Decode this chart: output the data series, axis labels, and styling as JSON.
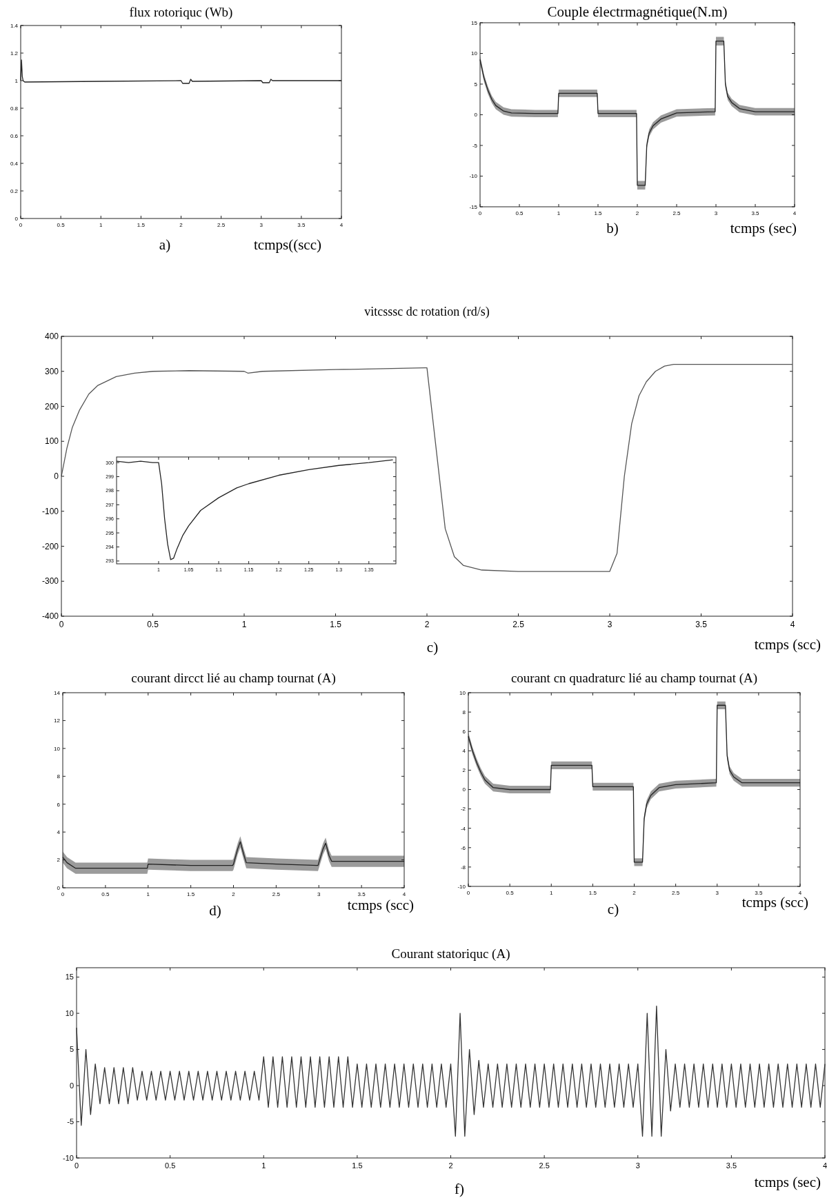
{
  "chart_data": [
    {
      "type": "line",
      "title": "flux rotoriquc (Wb)",
      "xlabel": "tcmps((scc)",
      "annotations": [
        "a)"
      ],
      "xlim": [
        0,
        4
      ],
      "ylim": [
        0,
        1.4
      ],
      "xticks": [
        0,
        0.5,
        1,
        1.5,
        2,
        2.5,
        3,
        3.5,
        4
      ],
      "yticks": [
        0,
        0.2,
        0.4,
        0.6,
        0.8,
        1,
        1.2,
        1.4
      ],
      "series": [
        {
          "color": "#222222",
          "x": [
            0,
            0.01,
            0.02,
            0.03,
            0.05,
            1.0,
            2.0,
            2.02,
            2.08,
            2.1,
            2.12,
            2.14,
            3.0,
            3.02,
            3.08,
            3.1,
            3.12,
            3.14,
            4.0
          ],
          "values": [
            1.0,
            1.15,
            1.03,
            1.0,
            0.99,
            0.995,
            1.0,
            0.98,
            0.98,
            0.98,
            1.01,
            0.995,
            1.0,
            0.985,
            0.985,
            0.985,
            1.01,
            1.0,
            1.0
          ]
        }
      ]
    },
    {
      "type": "line",
      "title": "Couple électrmagnétique(N.m)",
      "xlabel": "tcmps (sec)",
      "annotations": [
        "b)"
      ],
      "xlim": [
        0,
        4
      ],
      "ylim": [
        -15,
        15
      ],
      "xticks": [
        0,
        0.5,
        1,
        1.5,
        2,
        2.5,
        3,
        3.5,
        4
      ],
      "yticks": [
        -15,
        -10,
        -5,
        0,
        5,
        10,
        15
      ],
      "series": [
        {
          "color": "#222222",
          "x": [
            0,
            0.05,
            0.1,
            0.15,
            0.2,
            0.3,
            0.4,
            0.7,
            0.99,
            1.0,
            1.25,
            1.49,
            1.5,
            1.75,
            1.99,
            2.0,
            2.1,
            2.12,
            2.15,
            2.2,
            2.3,
            2.5,
            2.99,
            3.0,
            3.1,
            3.12,
            3.15,
            3.2,
            3.3,
            3.5,
            4.0
          ],
          "values": [
            9,
            6,
            4,
            2.5,
            1.5,
            0.6,
            0.3,
            0.2,
            0.2,
            3.5,
            3.5,
            3.5,
            0.2,
            0.2,
            0.2,
            -11.5,
            -11.5,
            -5,
            -3,
            -1.8,
            -0.7,
            0.3,
            0.5,
            12,
            12,
            5,
            3,
            2,
            1,
            0.5,
            0.5
          ],
          "lower": [
            8.4,
            5.4,
            3.4,
            1.9,
            0.9,
            0,
            -0.3,
            -0.4,
            -0.4,
            2.9,
            2.9,
            2.9,
            -0.4,
            -0.4,
            -0.4,
            -12.2,
            -12.2,
            -5.6,
            -3.6,
            -2.4,
            -1.3,
            -0.3,
            -0.1,
            11.3,
            11.3,
            4.4,
            2.4,
            1.4,
            0.4,
            -0.1,
            -0.1
          ],
          "upper": [
            9.6,
            6.6,
            4.6,
            3.1,
            2.1,
            1.2,
            0.9,
            0.8,
            0.8,
            4.1,
            4.1,
            4.1,
            0.8,
            0.8,
            0.8,
            -10.8,
            -10.8,
            -4.4,
            -2.4,
            -1.2,
            -0.1,
            0.9,
            1.1,
            12.7,
            12.7,
            5.6,
            3.6,
            2.6,
            1.6,
            1.1,
            1.1
          ]
        }
      ]
    },
    {
      "type": "line",
      "title": "vitcsssc dc rotation (rd/s)",
      "xlabel": "tcmps (scc)",
      "annotations": [
        "c)"
      ],
      "xlim": [
        0,
        4
      ],
      "ylim": [
        -400,
        400
      ],
      "xticks": [
        0,
        0.5,
        1,
        1.5,
        2,
        2.5,
        3,
        3.5,
        4
      ],
      "yticks": [
        -400,
        -300,
        -200,
        -100,
        0,
        100,
        200,
        300,
        400
      ],
      "series": [
        {
          "color": "#555555",
          "x": [
            0,
            0.03,
            0.06,
            0.1,
            0.15,
            0.2,
            0.3,
            0.4,
            0.5,
            0.7,
            1.0,
            1.02,
            1.1,
            1.5,
            1.99,
            2.0,
            2.05,
            2.1,
            2.15,
            2.2,
            2.3,
            2.5,
            2.99,
            3.0,
            3.04,
            3.08,
            3.12,
            3.16,
            3.2,
            3.25,
            3.3,
            3.35,
            3.5,
            4.0
          ],
          "values": [
            0,
            80,
            140,
            190,
            235,
            260,
            285,
            295,
            300,
            302,
            300,
            295,
            300,
            305,
            310,
            310,
            80,
            -150,
            -230,
            -255,
            -268,
            -272,
            -272,
            -272,
            -220,
            0,
            150,
            230,
            270,
            300,
            315,
            320,
            320,
            320
          ]
        }
      ]
    },
    {
      "type": "line",
      "xlim": [
        0.93,
        1.395
      ],
      "ylim": [
        292.8,
        300.4
      ],
      "xticks": [
        1,
        1.05,
        1.1,
        1.15,
        1.2,
        1.25,
        1.3,
        1.35
      ],
      "yticks": [
        293,
        294,
        295,
        296,
        297,
        298,
        299,
        300
      ],
      "series": [
        {
          "color": "#222222",
          "x": [
            0.93,
            0.95,
            0.97,
            0.99,
            1.0,
            1.005,
            1.01,
            1.015,
            1.02,
            1.025,
            1.03,
            1.04,
            1.05,
            1.07,
            1.1,
            1.13,
            1.15,
            1.2,
            1.25,
            1.3,
            1.35,
            1.39
          ],
          "values": [
            300.1,
            300,
            300.1,
            300,
            300,
            298.5,
            296,
            294.2,
            293.1,
            293.2,
            293.8,
            294.8,
            295.5,
            296.6,
            297.5,
            298.2,
            298.5,
            299.1,
            299.5,
            299.8,
            300,
            300.2
          ]
        }
      ]
    },
    {
      "type": "line",
      "title": "courant dircct lié au champ tournat (A)",
      "xlabel": "tcmps (scc)",
      "annotations": [
        "d)"
      ],
      "xlim": [
        0,
        4
      ],
      "ylim": [
        0,
        14
      ],
      "xticks": [
        0,
        0.5,
        1,
        1.5,
        2,
        2.5,
        3,
        3.5,
        4
      ],
      "yticks": [
        0,
        2,
        4,
        6,
        8,
        10,
        12,
        14
      ],
      "series": [
        {
          "color": "#222222",
          "x": [
            0,
            0.05,
            0.15,
            0.5,
            0.99,
            1.0,
            1.5,
            1.99,
            2.0,
            2.05,
            2.08,
            2.12,
            2.15,
            2.5,
            2.99,
            3.0,
            3.05,
            3.08,
            3.12,
            3.15,
            3.5,
            4.0
          ],
          "values": [
            2.2,
            1.8,
            1.4,
            1.4,
            1.4,
            1.7,
            1.6,
            1.6,
            1.7,
            2.8,
            3.3,
            2.4,
            1.8,
            1.7,
            1.6,
            1.8,
            2.8,
            3.2,
            2.3,
            1.9,
            1.9,
            1.9
          ],
          "lower": [
            1.8,
            1.4,
            1.0,
            1.0,
            1.0,
            1.3,
            1.2,
            1.2,
            1.3,
            2.4,
            2.9,
            2.0,
            1.4,
            1.3,
            1.2,
            1.4,
            2.4,
            2.8,
            1.9,
            1.5,
            1.5,
            1.5
          ],
          "upper": [
            2.6,
            2.2,
            1.8,
            1.8,
            1.8,
            2.1,
            2.0,
            2.0,
            2.1,
            3.2,
            3.7,
            2.8,
            2.2,
            2.1,
            2.0,
            2.2,
            3.2,
            3.6,
            2.7,
            2.3,
            2.3,
            2.3
          ]
        }
      ]
    },
    {
      "type": "line",
      "title": "courant  cn quadraturc lié au champ tournat (A)",
      "xlabel": "tcmps (scc)",
      "annotations": [
        "c)"
      ],
      "xlim": [
        0,
        4
      ],
      "ylim": [
        -10,
        10
      ],
      "xticks": [
        0,
        0.5,
        1,
        1.5,
        2,
        2.5,
        3,
        3.5,
        4
      ],
      "yticks": [
        -10,
        -8,
        -6,
        -4,
        -2,
        0,
        2,
        4,
        6,
        8,
        10
      ],
      "series": [
        {
          "color": "#222222",
          "x": [
            0,
            0.05,
            0.1,
            0.15,
            0.2,
            0.3,
            0.5,
            0.99,
            1.0,
            1.25,
            1.49,
            1.5,
            1.75,
            1.99,
            2.0,
            2.1,
            2.12,
            2.15,
            2.2,
            2.3,
            2.5,
            2.99,
            3.0,
            3.1,
            3.12,
            3.15,
            3.2,
            3.3,
            3.5,
            4.0
          ],
          "values": [
            5.5,
            4,
            2.8,
            1.8,
            1,
            0.2,
            0,
            0,
            2.5,
            2.5,
            2.5,
            0.3,
            0.3,
            0.3,
            -7.5,
            -7.5,
            -3,
            -1.5,
            -0.6,
            0.2,
            0.5,
            0.7,
            8.7,
            8.7,
            3.5,
            2,
            1.3,
            0.7,
            0.7,
            0.7
          ],
          "lower": [
            5.1,
            3.6,
            2.4,
            1.4,
            0.6,
            -0.2,
            -0.4,
            -0.4,
            2.1,
            2.1,
            2.1,
            -0.1,
            -0.1,
            -0.1,
            -7.9,
            -7.9,
            -3.4,
            -1.9,
            -1.0,
            -0.2,
            0.1,
            0.3,
            8.3,
            8.3,
            3.1,
            1.6,
            0.9,
            0.3,
            0.3,
            0.3
          ],
          "upper": [
            5.9,
            4.4,
            3.2,
            2.2,
            1.4,
            0.6,
            0.4,
            0.4,
            2.9,
            2.9,
            2.9,
            0.7,
            0.7,
            0.7,
            -7.1,
            -7.1,
            -2.6,
            -1.1,
            -0.2,
            0.6,
            0.9,
            1.1,
            9.1,
            9.1,
            3.9,
            2.4,
            1.7,
            1.1,
            1.1,
            1.1
          ]
        }
      ]
    },
    {
      "type": "line",
      "title": "Courant statoriquc (A)",
      "xlabel": "tcmps (sec)",
      "annotations": [
        "f)"
      ],
      "xlim": [
        0,
        4
      ],
      "ylim": [
        -10,
        16.3
      ],
      "xticks": [
        0,
        0.5,
        1,
        1.5,
        2,
        2.5,
        3,
        3.5,
        4
      ],
      "yticks": [
        -10,
        -5,
        0,
        5,
        10,
        15
      ],
      "series": [
        {
          "color": "#333333",
          "x": [
            0,
            0.025,
            0.05,
            0.075,
            0.1,
            0.125,
            0.15,
            0.175,
            0.2,
            0.225,
            0.25,
            0.275,
            0.3,
            0.325,
            0.35,
            0.375,
            0.4,
            0.425,
            0.45,
            0.475,
            0.5,
            0.525,
            0.55,
            0.575,
            0.6,
            0.625,
            0.65,
            0.675,
            0.7,
            0.725,
            0.75,
            0.775,
            0.8,
            0.825,
            0.85,
            0.875,
            0.9,
            0.925,
            0.95,
            0.975,
            1.0,
            1.025,
            1.05,
            1.075,
            1.1,
            1.125,
            1.15,
            1.175,
            1.2,
            1.225,
            1.25,
            1.275,
            1.3,
            1.325,
            1.35,
            1.375,
            1.4,
            1.425,
            1.45,
            1.475,
            1.5,
            1.525,
            1.55,
            1.575,
            1.6,
            1.625,
            1.65,
            1.675,
            1.7,
            1.725,
            1.75,
            1.775,
            1.8,
            1.825,
            1.85,
            1.875,
            1.9,
            1.925,
            1.95,
            1.975,
            2.0,
            2.025,
            2.05,
            2.075,
            2.1,
            2.125,
            2.15,
            2.175,
            2.2,
            2.225,
            2.25,
            2.275,
            2.3,
            2.325,
            2.35,
            2.375,
            2.4,
            2.425,
            2.45,
            2.475,
            2.5,
            2.525,
            2.55,
            2.575,
            2.6,
            2.625,
            2.65,
            2.675,
            2.7,
            2.725,
            2.75,
            2.775,
            2.8,
            2.825,
            2.85,
            2.875,
            2.9,
            2.925,
            2.95,
            2.975,
            3.0,
            3.025,
            3.05,
            3.075,
            3.1,
            3.125,
            3.15,
            3.175,
            3.2,
            3.225,
            3.25,
            3.275,
            3.3,
            3.325,
            3.35,
            3.375,
            3.4,
            3.425,
            3.45,
            3.475,
            3.5,
            3.525,
            3.55,
            3.575,
            3.6,
            3.625,
            3.65,
            3.675,
            3.7,
            3.725,
            3.75,
            3.775,
            3.8,
            3.825,
            3.85,
            3.875,
            3.9,
            3.925,
            3.95,
            3.975,
            4.0
          ],
          "values": [
            8,
            -5.5,
            5,
            -4,
            3,
            -2.5,
            2.5,
            -2.5,
            2.5,
            -2.5,
            2.5,
            -2.5,
            2.5,
            -2,
            2,
            -2,
            2,
            -2,
            2,
            -2,
            2,
            -2,
            2,
            -2,
            2,
            -2,
            2,
            -2,
            2,
            -2,
            2,
            -2,
            2,
            -2,
            2,
            -2,
            2,
            -2,
            2,
            -2,
            4,
            -3,
            4,
            -3,
            4,
            -3,
            4,
            -3,
            4,
            -3,
            4,
            -3,
            4,
            -3,
            4,
            -3,
            4,
            -3,
            4,
            -3,
            3,
            -3,
            3,
            -3,
            3,
            -3,
            3,
            -3,
            3,
            -3,
            3,
            -3,
            3,
            -3,
            3,
            -3,
            3,
            -3,
            3,
            -3,
            3,
            -7,
            10,
            -7,
            5,
            -4,
            3.5,
            -3,
            3,
            -3,
            3,
            -3,
            3,
            -3,
            3,
            -3,
            3,
            -3,
            3,
            -3,
            3,
            -3,
            3,
            -3,
            3,
            -3,
            3,
            -3,
            3,
            -3,
            3,
            -3,
            3,
            -3,
            3,
            -3,
            3,
            -3,
            3,
            -3,
            3,
            -7,
            10,
            -7,
            11,
            -7,
            5,
            -3.5,
            3,
            -3,
            3,
            -3,
            3,
            -3,
            3,
            -3,
            3,
            -3,
            3,
            -3,
            3,
            -3,
            3,
            -3,
            3,
            -3,
            3,
            -3,
            3,
            -3,
            3,
            -3,
            3,
            -3,
            3,
            -3,
            3,
            -3,
            3,
            -3,
            3
          ]
        }
      ]
    }
  ]
}
